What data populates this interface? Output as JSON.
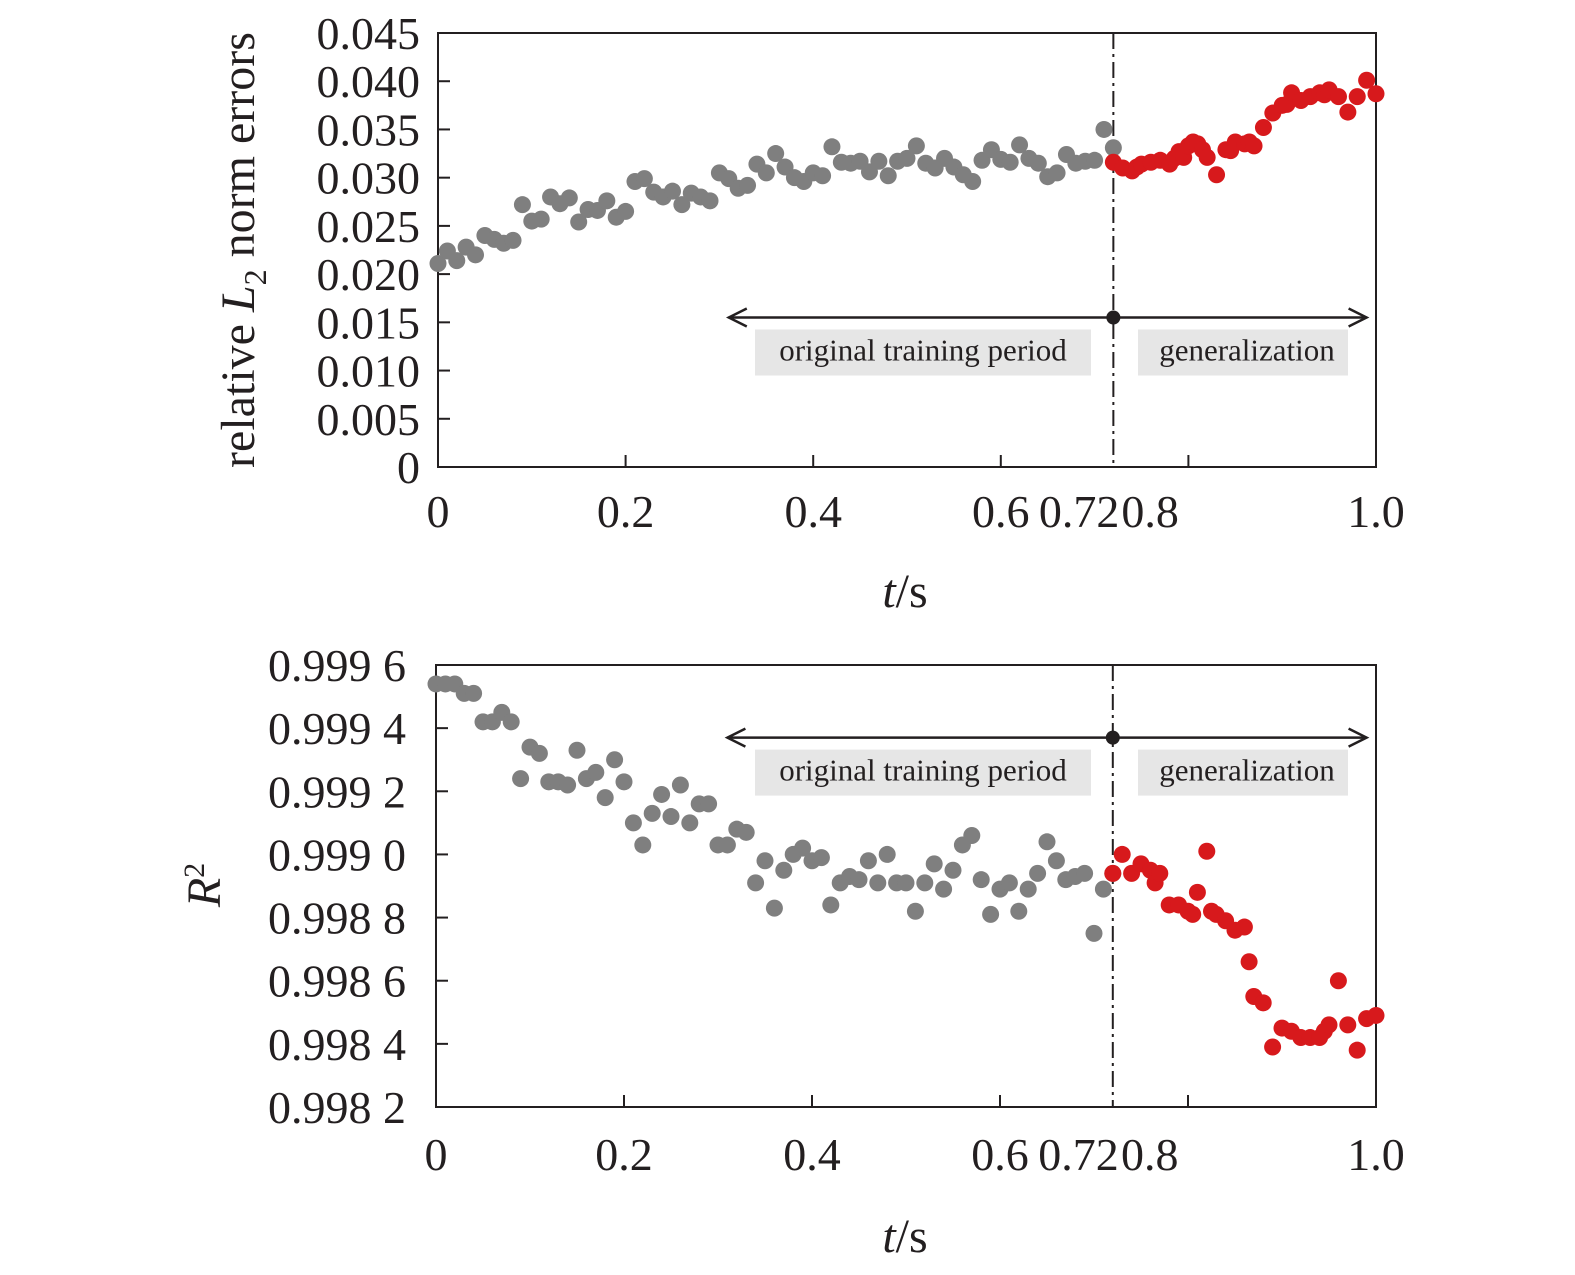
{
  "chart_data": [
    {
      "type": "scatter",
      "xlabel_var": "t",
      "xlabel_unit": "/s",
      "ylabel_parts": [
        "relative ",
        "L",
        "2",
        " norm errors"
      ],
      "xlim": [
        0,
        1.0
      ],
      "ylim": [
        0,
        0.045
      ],
      "xticks": [
        0,
        0.2,
        0.4,
        0.6,
        0.72,
        0.8,
        1.0
      ],
      "xtick_labels": [
        "0",
        "0.2",
        "0.4",
        "0.6",
        "0.72",
        "0.8",
        "1.0"
      ],
      "yticks": [
        0,
        0.005,
        0.01,
        0.015,
        0.02,
        0.025,
        0.03,
        0.035,
        0.04,
        0.045
      ],
      "ytick_labels": [
        "0",
        "0.005",
        "0.010",
        "0.015",
        "0.020",
        "0.025",
        "0.030",
        "0.035",
        "0.040",
        "0.045"
      ],
      "divider_x": 0.72,
      "annotation_y": 0.0155,
      "annotation_arrow_from": 0.31,
      "annotation_arrow_to": 0.99,
      "annotations": {
        "training": "original training period",
        "generalization": "generalization"
      },
      "colors": {
        "training": "#7f7f7f",
        "generalization": "#d7191c"
      },
      "series": [
        {
          "x": [
            0,
            0.01,
            0.02,
            0.03,
            0.04,
            0.05,
            0.06,
            0.07,
            0.08,
            0.09,
            0.1,
            0.11,
            0.12,
            0.13,
            0.14,
            0.15,
            0.16,
            0.17,
            0.18,
            0.19,
            0.2,
            0.21,
            0.22,
            0.23,
            0.24,
            0.25,
            0.26,
            0.27,
            0.28,
            0.29,
            0.3,
            0.31,
            0.32,
            0.33,
            0.34,
            0.35,
            0.36,
            0.37,
            0.38,
            0.39,
            0.4,
            0.41,
            0.42,
            0.43,
            0.44,
            0.45,
            0.46,
            0.47,
            0.48,
            0.49,
            0.5,
            0.51,
            0.52,
            0.53,
            0.54,
            0.55,
            0.56,
            0.57,
            0.58,
            0.59,
            0.6,
            0.61,
            0.62,
            0.63,
            0.64,
            0.65,
            0.66,
            0.67,
            0.68,
            0.69,
            0.7,
            0.71,
            0.72
          ],
          "y": [
            0.0211,
            0.0224,
            0.0214,
            0.0228,
            0.022,
            0.024,
            0.0236,
            0.0232,
            0.0235,
            0.0272,
            0.0255,
            0.0257,
            0.028,
            0.0273,
            0.0279,
            0.0254,
            0.0267,
            0.0266,
            0.0276,
            0.0259,
            0.0265,
            0.0296,
            0.0299,
            0.0285,
            0.028,
            0.0286,
            0.0272,
            0.0284,
            0.028,
            0.0276,
            0.0305,
            0.0299,
            0.0289,
            0.0292,
            0.0314,
            0.0305,
            0.0325,
            0.0311,
            0.03,
            0.0296,
            0.0305,
            0.0302,
            0.0332,
            0.0316,
            0.0315,
            0.0317,
            0.0306,
            0.0317,
            0.0302,
            0.0317,
            0.032,
            0.0333,
            0.0315,
            0.031,
            0.032,
            0.0311,
            0.0303,
            0.0296,
            0.0318,
            0.0329,
            0.0319,
            0.0316,
            0.0334,
            0.032,
            0.0315,
            0.0301,
            0.0305,
            0.0324,
            0.0315,
            0.0317,
            0.0318,
            0.035,
            0.0331
          ]
        },
        {
          "x": [
            0.72,
            0.73,
            0.74,
            0.745,
            0.75,
            0.76,
            0.77,
            0.78,
            0.785,
            0.79,
            0.795,
            0.8,
            0.805,
            0.81,
            0.815,
            0.82,
            0.83,
            0.84,
            0.845,
            0.85,
            0.86,
            0.865,
            0.87,
            0.88,
            0.89,
            0.9,
            0.905,
            0.91,
            0.92,
            0.93,
            0.94,
            0.945,
            0.95,
            0.96,
            0.97,
            0.98,
            0.99,
            1.0
          ],
          "y": [
            0.0316,
            0.031,
            0.0307,
            0.0311,
            0.0314,
            0.0316,
            0.0318,
            0.0314,
            0.032,
            0.0327,
            0.0321,
            0.0333,
            0.0337,
            0.0335,
            0.0329,
            0.0321,
            0.0303,
            0.0329,
            0.0328,
            0.0337,
            0.0335,
            0.0337,
            0.0333,
            0.0352,
            0.0367,
            0.0375,
            0.0376,
            0.0388,
            0.038,
            0.0384,
            0.0388,
            0.0386,
            0.0391,
            0.0384,
            0.0368,
            0.0384,
            0.0401,
            0.0387
          ]
        }
      ]
    },
    {
      "type": "scatter",
      "xlabel_var": "t",
      "xlabel_unit": "/s",
      "ylabel_var": "R",
      "ylabel_sup": "2",
      "xlim": [
        0,
        1.0
      ],
      "ylim": [
        0.9982,
        0.9996
      ],
      "xticks": [
        0,
        0.2,
        0.4,
        0.6,
        0.72,
        0.8,
        1.0
      ],
      "xtick_labels": [
        "0",
        "0.2",
        "0.4",
        "0.6",
        "0.72",
        "0.8",
        "1.0"
      ],
      "yticks": [
        0.9982,
        0.9984,
        0.9986,
        0.9988,
        0.999,
        0.9992,
        0.9994,
        0.9996
      ],
      "ytick_labels": [
        "0.998 2",
        "0.998 4",
        "0.998 6",
        "0.998 8",
        "0.999 0",
        "0.999 2",
        "0.999 4",
        "0.999 6"
      ],
      "divider_x": 0.72,
      "annotation_y": 0.99937,
      "annotation_arrow_from": 0.31,
      "annotation_arrow_to": 0.99,
      "annotations": {
        "training": "original training period",
        "generalization": "generalization"
      },
      "colors": {
        "training": "#7f7f7f",
        "generalization": "#d7191c"
      },
      "series": [
        {
          "x": [
            0,
            0.01,
            0.02,
            0.03,
            0.04,
            0.05,
            0.06,
            0.07,
            0.08,
            0.09,
            0.1,
            0.11,
            0.12,
            0.13,
            0.14,
            0.15,
            0.16,
            0.17,
            0.18,
            0.19,
            0.2,
            0.21,
            0.22,
            0.23,
            0.24,
            0.25,
            0.26,
            0.27,
            0.28,
            0.29,
            0.3,
            0.31,
            0.32,
            0.33,
            0.34,
            0.35,
            0.36,
            0.37,
            0.38,
            0.39,
            0.4,
            0.41,
            0.42,
            0.43,
            0.44,
            0.45,
            0.46,
            0.47,
            0.48,
            0.49,
            0.5,
            0.51,
            0.52,
            0.53,
            0.54,
            0.55,
            0.56,
            0.57,
            0.58,
            0.59,
            0.6,
            0.61,
            0.62,
            0.63,
            0.64,
            0.65,
            0.66,
            0.67,
            0.68,
            0.69,
            0.7,
            0.71,
            0.72
          ],
          "y": [
            0.99954,
            0.99954,
            0.99954,
            0.99951,
            0.99951,
            0.99942,
            0.99942,
            0.99945,
            0.99942,
            0.99924,
            0.99934,
            0.99932,
            0.99923,
            0.99923,
            0.99922,
            0.99933,
            0.99924,
            0.99926,
            0.99918,
            0.9993,
            0.99923,
            0.9991,
            0.99903,
            0.99913,
            0.99919,
            0.99912,
            0.99922,
            0.9991,
            0.99916,
            0.99916,
            0.99903,
            0.99903,
            0.99908,
            0.99907,
            0.99891,
            0.99898,
            0.99883,
            0.99895,
            0.999,
            0.99902,
            0.99898,
            0.99899,
            0.99884,
            0.99891,
            0.99893,
            0.99892,
            0.99898,
            0.99891,
            0.999,
            0.99891,
            0.99891,
            0.99882,
            0.99891,
            0.99897,
            0.99889,
            0.99895,
            0.99903,
            0.99906,
            0.99892,
            0.99881,
            0.99889,
            0.99891,
            0.99882,
            0.99889,
            0.99894,
            0.99904,
            0.99898,
            0.99892,
            0.99893,
            0.99894,
            0.99875,
            0.99889,
            0.99894
          ]
        },
        {
          "x": [
            0.72,
            0.73,
            0.74,
            0.75,
            0.76,
            0.765,
            0.77,
            0.78,
            0.79,
            0.8,
            0.805,
            0.81,
            0.82,
            0.825,
            0.83,
            0.84,
            0.85,
            0.86,
            0.865,
            0.87,
            0.88,
            0.89,
            0.9,
            0.91,
            0.92,
            0.93,
            0.94,
            0.945,
            0.95,
            0.96,
            0.97,
            0.98,
            0.99,
            1.0
          ],
          "y": [
            0.99894,
            0.999,
            0.99894,
            0.99897,
            0.99895,
            0.99891,
            0.99894,
            0.99884,
            0.99884,
            0.99882,
            0.99881,
            0.99888,
            0.99901,
            0.99882,
            0.99881,
            0.99879,
            0.99876,
            0.99877,
            0.99866,
            0.99855,
            0.99853,
            0.99839,
            0.99845,
            0.99844,
            0.99842,
            0.99842,
            0.99842,
            0.99844,
            0.99846,
            0.9986,
            0.99846,
            0.99838,
            0.99848,
            0.99849
          ]
        }
      ]
    }
  ]
}
